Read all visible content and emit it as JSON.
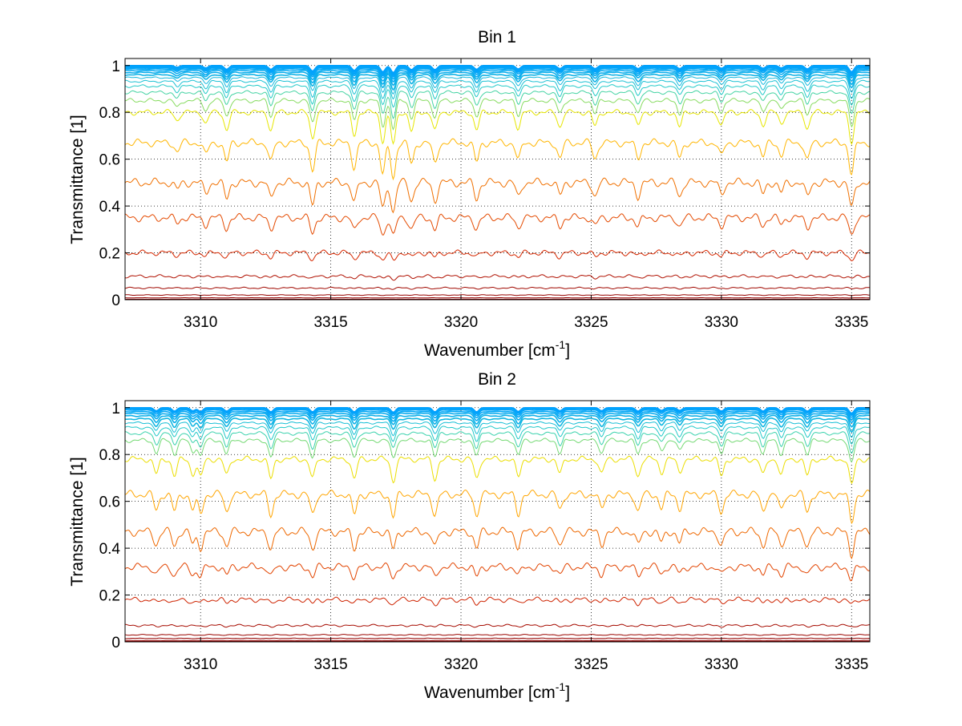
{
  "chart_data": [
    {
      "type": "line",
      "title": "Bin 1",
      "xlabel_main": "Wavenumber [cm",
      "xlabel_sup": "-1",
      "xlabel_close": "]",
      "ylabel": "Transmittance [1]",
      "xlim": [
        3307.1,
        3335.7
      ],
      "ylim": [
        0,
        1.03
      ],
      "xticks": [
        3310,
        3315,
        3320,
        3325,
        3330,
        3335
      ],
      "yticks": [
        0,
        0.2,
        0.4,
        0.6,
        0.8,
        1
      ],
      "grid": true,
      "colors_light_to_deep": [
        "#00a0ff",
        "#28d0c0",
        "#e6e600",
        "#ffc000",
        "#ff9a00",
        "#f07000",
        "#e85400",
        "#e04000",
        "#d62800",
        "#b01000",
        "#900000"
      ],
      "series_baseline_transmittance": [
        1.0,
        1.0,
        0.998,
        0.996,
        0.993,
        0.99,
        0.985,
        0.978,
        0.97,
        0.96,
        0.948,
        0.932,
        0.912,
        0.885,
        0.85,
        0.8,
        0.67,
        0.5,
        0.35,
        0.2,
        0.1,
        0.05,
        0.02,
        0.008,
        0.002
      ],
      "absorption_lines_cm-1": [
        3309.1,
        3310.2,
        3311.0,
        3312.7,
        3314.3,
        3315.9,
        3317.0,
        3317.4,
        3318.1,
        3319.0,
        3320.6,
        3322.2,
        3323.8,
        3325.15,
        3326.8,
        3328.4,
        3330.0,
        3331.6,
        3332.3,
        3333.3,
        3335.0
      ],
      "absorption_line_strengths": [
        0.25,
        0.35,
        0.55,
        0.55,
        0.8,
        0.7,
        0.9,
        1.0,
        0.6,
        0.6,
        0.55,
        0.5,
        0.45,
        0.45,
        0.45,
        0.45,
        0.4,
        0.4,
        0.35,
        0.5,
        0.9
      ]
    },
    {
      "type": "line",
      "title": "Bin 2",
      "xlabel_main": "Wavenumber [cm",
      "xlabel_sup": "-1",
      "xlabel_close": "]",
      "ylabel": "Transmittance [1]",
      "xlim": [
        3307.1,
        3335.7
      ],
      "ylim": [
        0,
        1.03
      ],
      "xticks": [
        3310,
        3315,
        3320,
        3325,
        3330,
        3335
      ],
      "yticks": [
        0,
        0.2,
        0.4,
        0.6,
        0.8,
        1
      ],
      "grid": true,
      "colors_light_to_deep": [
        "#00a0ff",
        "#28d0c0",
        "#e6e600",
        "#ffc000",
        "#ff9a00",
        "#f07000",
        "#e85400",
        "#e04000",
        "#d62800",
        "#b01000",
        "#900000"
      ],
      "series_baseline_transmittance": [
        1.0,
        1.0,
        0.998,
        0.995,
        0.99,
        0.983,
        0.975,
        0.965,
        0.952,
        0.935,
        0.915,
        0.89,
        0.86,
        0.78,
        0.63,
        0.47,
        0.32,
        0.18,
        0.07,
        0.03,
        0.015,
        0.006,
        0.002
      ],
      "absorption_lines_cm-1": [
        3308.3,
        3309.0,
        3309.7,
        3310.0,
        3311.0,
        3312.7,
        3314.3,
        3315.9,
        3317.4,
        3319.0,
        3320.6,
        3322.2,
        3323.8,
        3325.4,
        3326.8,
        3327.7,
        3328.4,
        3330.0,
        3331.6,
        3332.3,
        3333.3,
        3335.0
      ],
      "absorption_line_strengths": [
        0.45,
        0.5,
        0.45,
        0.55,
        0.5,
        0.6,
        0.6,
        0.6,
        0.65,
        0.6,
        0.6,
        0.55,
        0.45,
        0.45,
        0.5,
        0.4,
        0.4,
        0.5,
        0.5,
        0.5,
        0.5,
        0.8
      ]
    }
  ]
}
